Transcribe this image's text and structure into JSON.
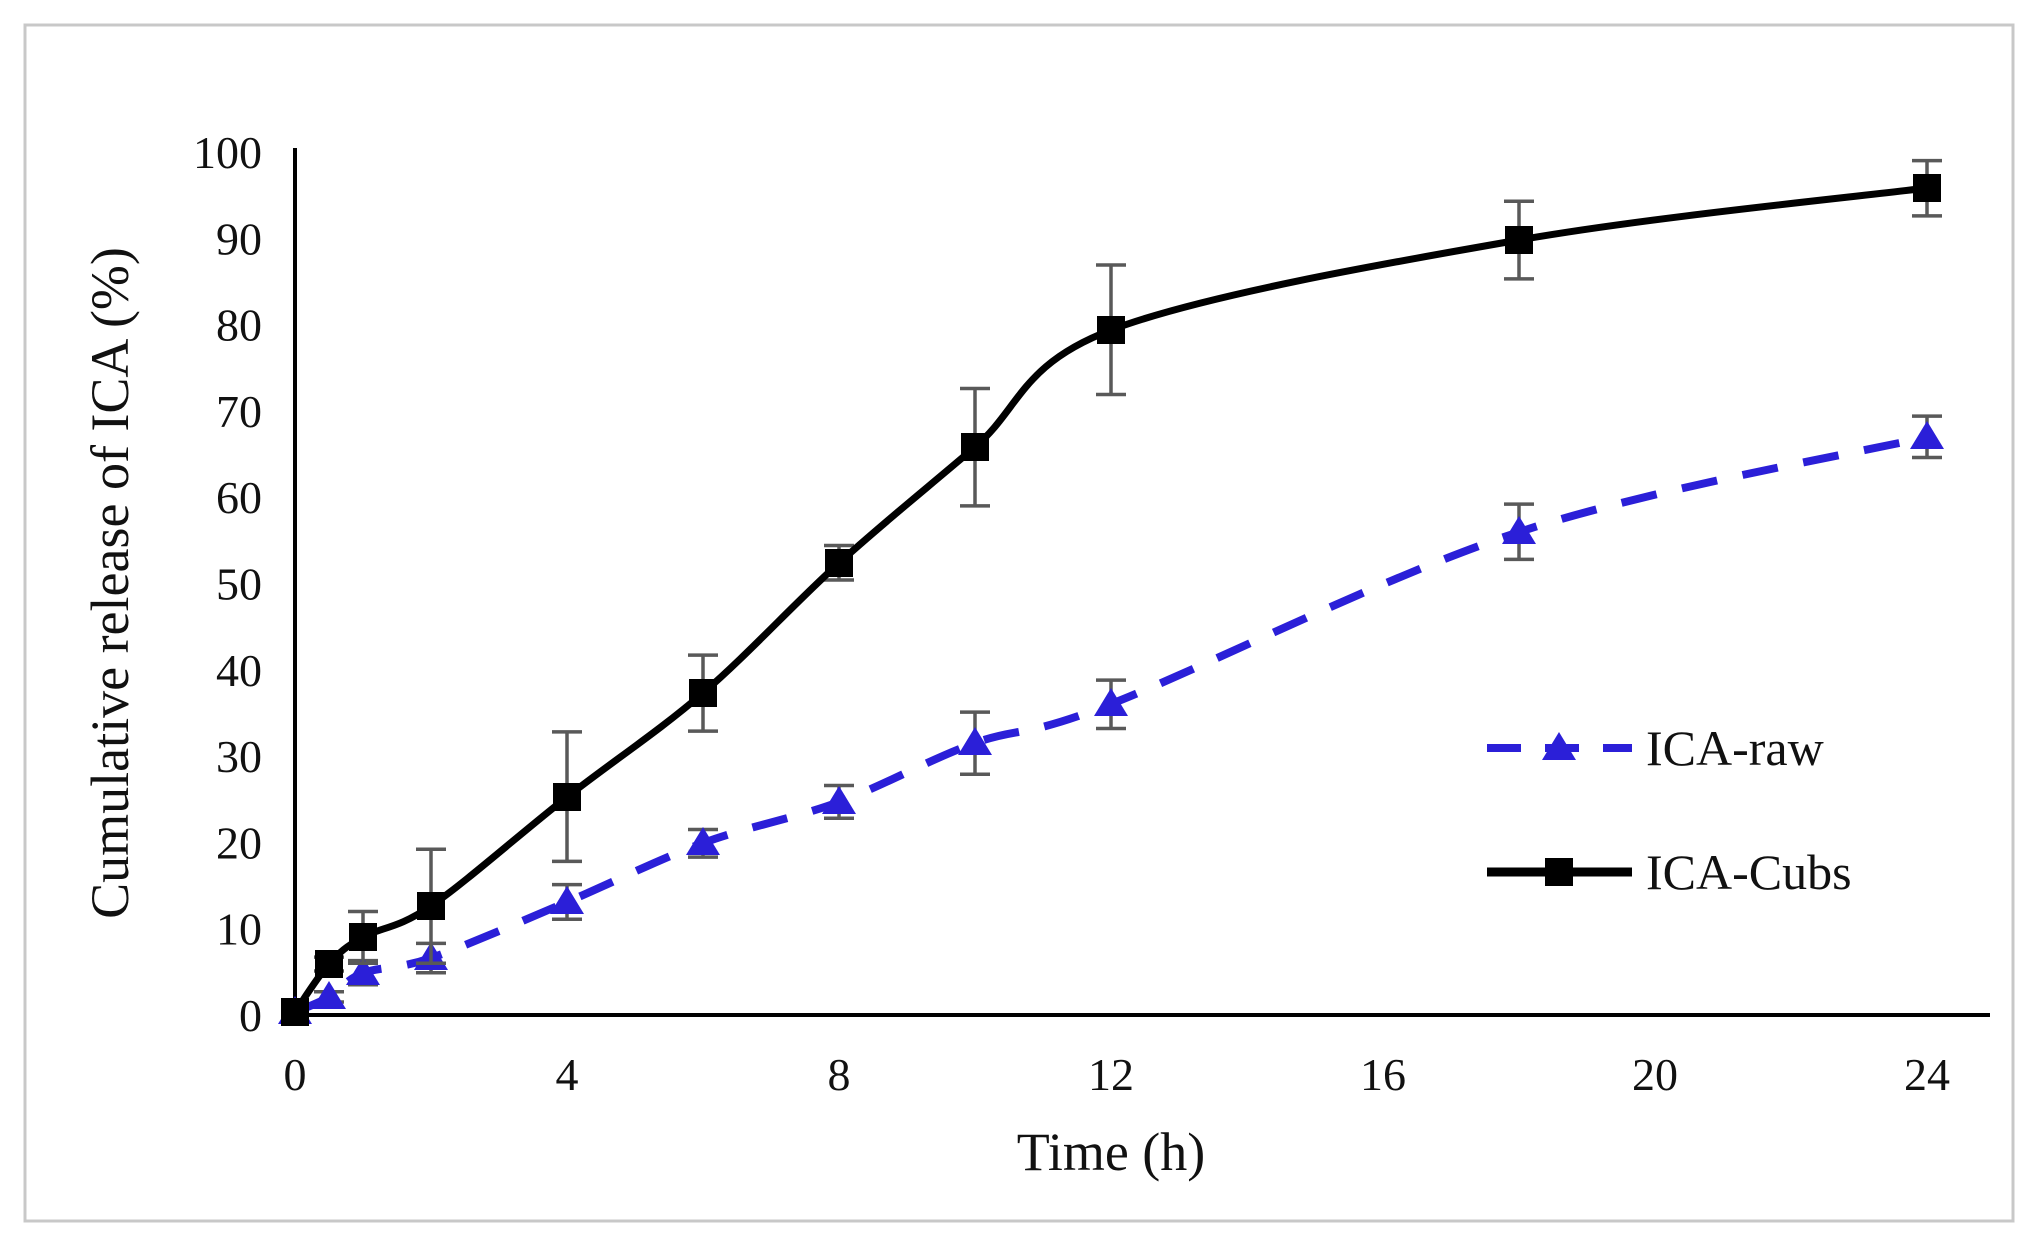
{
  "figure": {
    "background_color": "#ffffff",
    "frame_color": "#c8c8c8"
  },
  "chart_data": {
    "type": "line",
    "title": "",
    "xlabel": "Time (h)",
    "ylabel": "Cumulative release of ICA (%)",
    "xlim": [
      0,
      24
    ],
    "ylim": [
      0,
      100
    ],
    "x_ticks": [
      0,
      4,
      8,
      12,
      16,
      20,
      24
    ],
    "y_ticks": [
      0,
      10,
      20,
      30,
      40,
      50,
      60,
      70,
      80,
      90,
      100
    ],
    "grid": false,
    "legend_position": "right-middle",
    "error_bar_color": "#595959",
    "axis_color": "#000000",
    "series": [
      {
        "name": "ICA-raw",
        "color": "#2b1fd8",
        "line_style": "dashed",
        "marker": "triangle",
        "x": [
          0,
          0.5,
          1,
          2,
          4,
          6,
          8,
          10,
          12,
          18,
          24
        ],
        "y": [
          0.3,
          2.1,
          4.9,
          6.6,
          13.1,
          19.9,
          24.7,
          31.5,
          36,
          56,
          67
        ],
        "yerr": [
          0,
          0.6,
          1.4,
          1.7,
          2.0,
          1.6,
          1.9,
          3.6,
          2.8,
          3.2,
          2.4
        ]
      },
      {
        "name": "ICA-Cubs",
        "color": "#000000",
        "line_style": "solid",
        "marker": "square",
        "x": [
          0,
          0.5,
          1,
          2,
          4,
          6,
          8,
          10,
          12,
          18,
          24
        ],
        "y": [
          0.4,
          5.9,
          9.0,
          12.6,
          25.3,
          37.3,
          52.4,
          65.8,
          79.4,
          89.8,
          95.8
        ],
        "yerr": [
          0,
          0.8,
          3.0,
          6.6,
          7.5,
          4.4,
          2.0,
          6.8,
          7.5,
          4.5,
          3.2
        ]
      }
    ]
  }
}
